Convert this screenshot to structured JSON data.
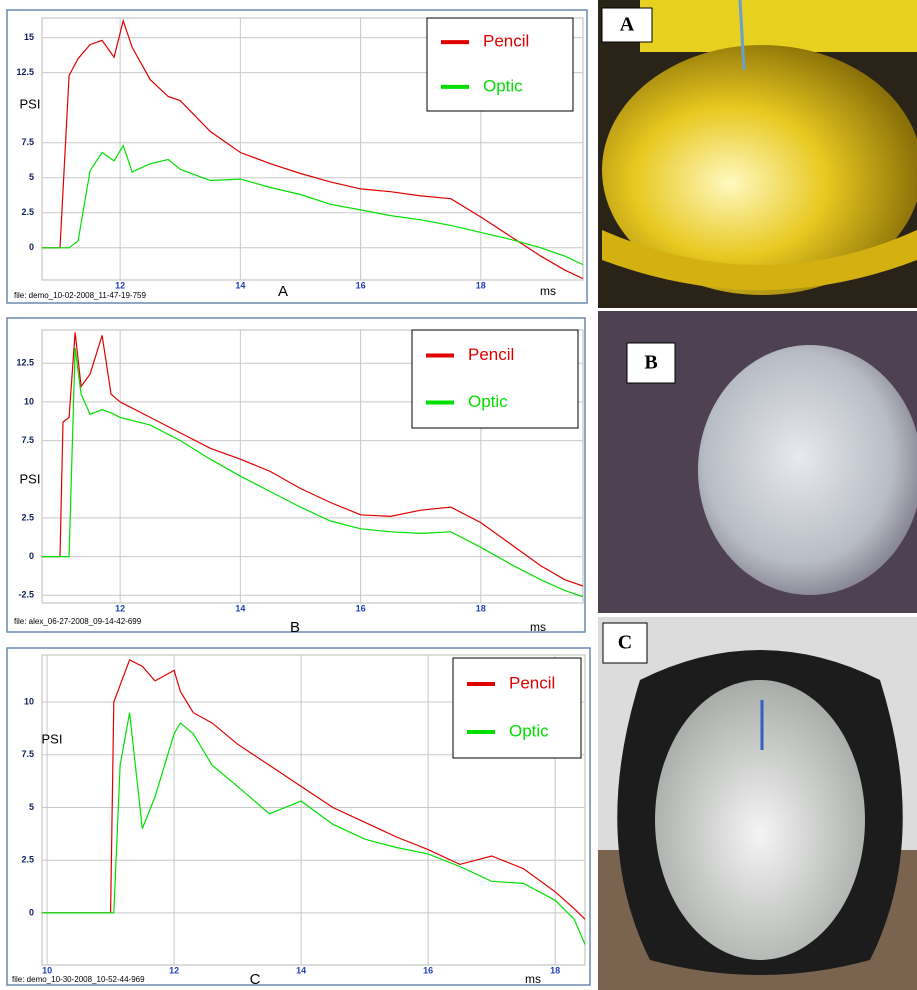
{
  "chart_data": [
    {
      "type": "line",
      "x": [
        10.7,
        11.0,
        11.15,
        11.3,
        11.5,
        11.7,
        11.9,
        12.05,
        12.2,
        12.5,
        12.8,
        13.0,
        13.5,
        14.0,
        14.5,
        15.0,
        15.5,
        16.0,
        16.5,
        17.0,
        17.5,
        18.0,
        18.5,
        19.0,
        19.4,
        19.7
      ],
      "series": [
        {
          "name": "Pencil",
          "color": "#e00000",
          "values": [
            0,
            0,
            12.3,
            13.5,
            14.5,
            14.8,
            13.6,
            16.2,
            14.3,
            12,
            10.8,
            10.5,
            8.3,
            6.8,
            6,
            5.3,
            4.7,
            4.2,
            4,
            3.7,
            3.5,
            2.2,
            0.8,
            -0.6,
            -1.6,
            -2.2
          ]
        },
        {
          "name": "Optic",
          "color": "#00e000",
          "values": [
            0,
            0,
            0,
            0.5,
            5.5,
            6.8,
            6.2,
            7.3,
            5.4,
            6,
            6.3,
            5.6,
            4.8,
            4.9,
            4.3,
            3.8,
            3.1,
            2.7,
            2.3,
            2,
            1.6,
            1.1,
            0.6,
            0,
            -0.6,
            -1.2
          ]
        }
      ],
      "xlim": [
        10.7,
        19.7
      ],
      "ylim": [
        -2.3,
        16.4
      ],
      "xticks": [
        12,
        14,
        16,
        18
      ],
      "yticks": [
        0,
        2.5,
        5,
        7.5,
        12.5,
        15
      ],
      "y_label": "PSI",
      "x_label": "ms",
      "caption": "A",
      "file": "file: demo_10-02-2008_11-47-19-759",
      "grid": true,
      "legend": "upper right"
    },
    {
      "type": "line",
      "x": [
        10.7,
        11.0,
        11.05,
        11.15,
        11.25,
        11.35,
        11.5,
        11.7,
        11.85,
        12.0,
        12.5,
        13.0,
        13.5,
        14.0,
        14.5,
        15.0,
        15.5,
        16.0,
        16.5,
        17.0,
        17.5,
        18.0,
        18.5,
        19.0,
        19.4,
        19.7
      ],
      "series": [
        {
          "name": "Pencil",
          "color": "#e00000",
          "values": [
            0,
            0,
            8.7,
            9,
            14.5,
            11,
            11.8,
            14.3,
            10.5,
            10,
            9,
            8,
            7,
            6.3,
            5.5,
            4.4,
            3.5,
            2.7,
            2.6,
            3,
            3.2,
            2.2,
            0.8,
            -0.6,
            -1.5,
            -1.9
          ]
        },
        {
          "name": "Optic",
          "color": "#00e000",
          "values": [
            0,
            0,
            0,
            0,
            13.5,
            10.5,
            9.2,
            9.5,
            9.3,
            9,
            8.5,
            7.5,
            6.3,
            5.2,
            4.2,
            3.2,
            2.3,
            1.8,
            1.6,
            1.5,
            1.6,
            0.6,
            -0.5,
            -1.5,
            -2.2,
            -2.6
          ]
        }
      ],
      "xlim": [
        10.7,
        19.7
      ],
      "ylim": [
        -3.0,
        14.65
      ],
      "xticks": [
        12,
        14,
        16,
        18
      ],
      "yticks": [
        -2.5,
        0,
        2.5,
        7.5,
        10,
        12.5
      ],
      "y_label": "PSI",
      "x_label": "ms",
      "caption": "B",
      "file": "file: alex_06-27-2008_09-14-42-699",
      "grid": true,
      "legend": "upper right"
    },
    {
      "type": "line",
      "x": [
        9.92,
        10.5,
        11.0,
        11.05,
        11.15,
        11.3,
        11.5,
        11.7,
        12.0,
        12.1,
        12.3,
        12.6,
        13.0,
        13.5,
        14.0,
        14.5,
        15.0,
        15.5,
        16.0,
        16.5,
        17.0,
        17.5,
        18.0,
        18.3,
        18.47
      ],
      "series": [
        {
          "name": "Pencil",
          "color": "#e00000",
          "values": [
            0,
            0,
            0,
            10,
            10.8,
            12,
            11.7,
            11,
            11.5,
            10.5,
            9.5,
            9,
            8,
            7,
            6,
            5,
            4.3,
            3.6,
            3,
            2.3,
            2.7,
            2.1,
            1,
            0.2,
            -0.3
          ]
        },
        {
          "name": "Optic",
          "color": "#00e000",
          "values": [
            0,
            0,
            0,
            0,
            7,
            9.5,
            4,
            5.5,
            8.5,
            9,
            8.5,
            7,
            6,
            4.7,
            5.3,
            4.2,
            3.5,
            3.1,
            2.8,
            2.2,
            1.5,
            1.4,
            0.6,
            -0.3,
            -1.5
          ]
        }
      ],
      "xlim": [
        9.92,
        18.47
      ],
      "ylim": [
        -2.47,
        12.23
      ],
      "xticks": [
        10,
        12,
        14,
        16,
        18
      ],
      "yticks": [
        0,
        2.5,
        5,
        7.5,
        10
      ],
      "y_label": "PSI",
      "x_label": "ms",
      "caption": "C",
      "file": "file: demo_10-30-2008_10-52-44-969",
      "grid": true,
      "legend": "upper right"
    }
  ],
  "photo_labels": [
    "A",
    "B",
    "C"
  ]
}
